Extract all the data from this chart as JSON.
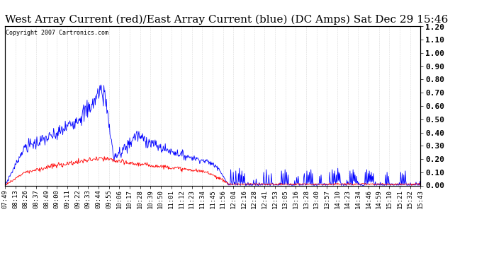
{
  "title": "West Array Current (red)/East Array Current (blue) (DC Amps) Sat Dec 29 15:46",
  "copyright": "Copyright 2007 Cartronics.com",
  "ylim": [
    0.0,
    1.2
  ],
  "yticks": [
    0.0,
    0.1,
    0.2,
    0.3,
    0.4,
    0.5,
    0.6,
    0.7,
    0.8,
    0.9,
    1.0,
    1.1,
    1.2
  ],
  "background_color": "#ffffff",
  "plot_bg_color": "#ffffff",
  "grid_color": "#bbbbbb",
  "line_blue_color": "#0000ff",
  "line_red_color": "#ff0000",
  "title_fontsize": 11,
  "tick_fontsize": 6.5,
  "time_labels": [
    "07:49",
    "08:13",
    "08:26",
    "08:37",
    "08:49",
    "09:00",
    "09:11",
    "09:22",
    "09:33",
    "09:44",
    "09:55",
    "10:06",
    "10:17",
    "10:28",
    "10:39",
    "10:50",
    "11:01",
    "11:12",
    "11:23",
    "11:34",
    "11:45",
    "11:56",
    "12:04",
    "12:16",
    "12:28",
    "12:41",
    "12:53",
    "13:05",
    "13:16",
    "13:28",
    "13:40",
    "13:57",
    "14:10",
    "14:23",
    "14:34",
    "14:46",
    "14:59",
    "15:10",
    "15:21",
    "15:32",
    "15:43"
  ]
}
